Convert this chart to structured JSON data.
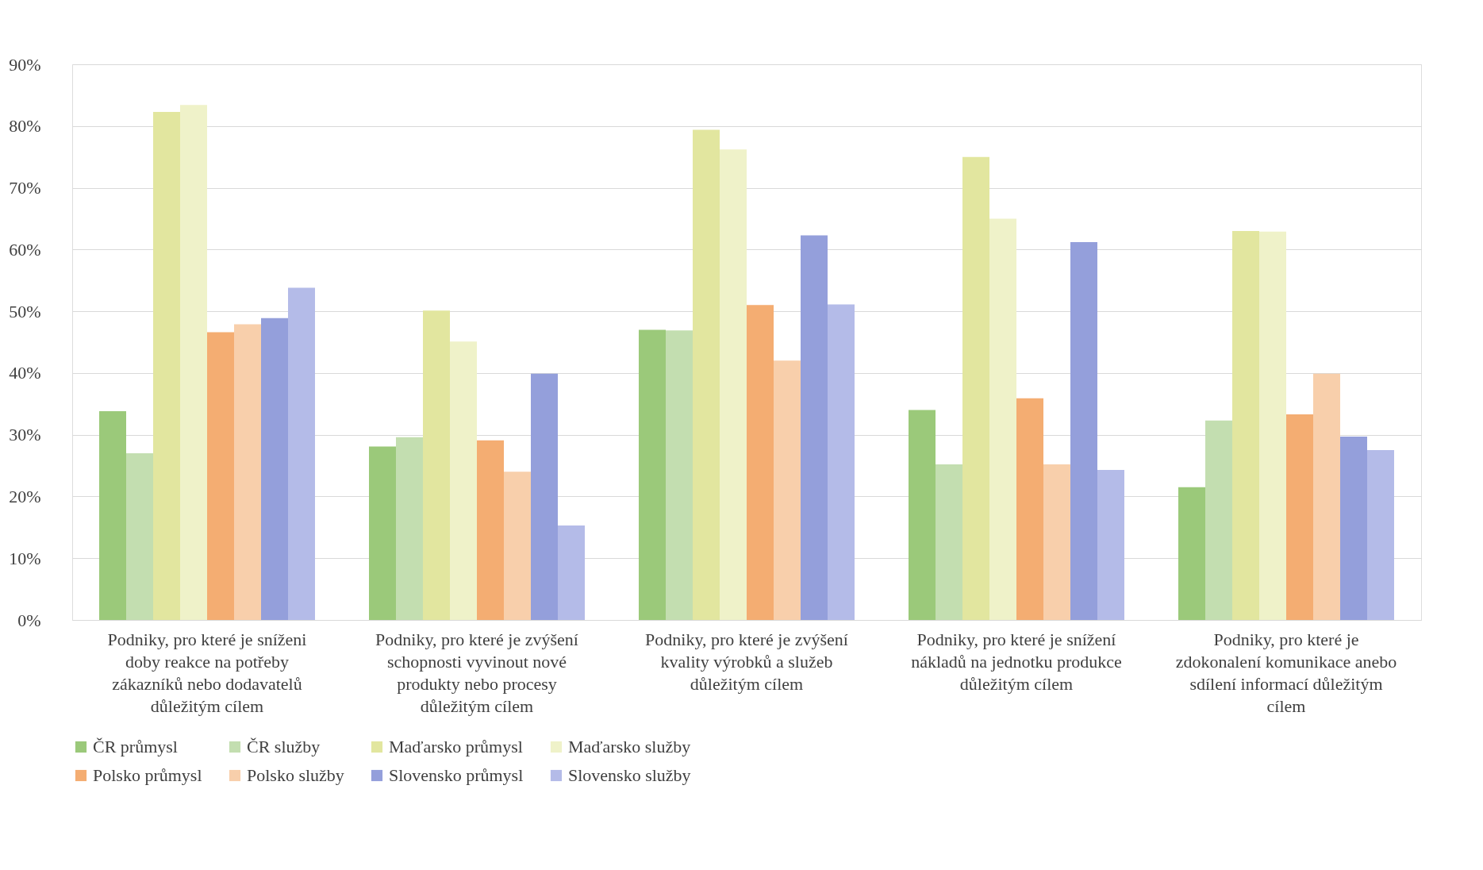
{
  "chart_data": {
    "type": "bar",
    "categories": [
      "Podniky, pro které je sníženi doby reakce na potřeby zákazníků nebo dodavatelů důležitým cílem",
      "Podniky, pro které je zvýšení schopnosti vyvinout nové produkty nebo procesy důležitým cílem",
      "Podniky, pro které je zvýšení kvality výrobků a služeb důležitým cílem",
      "Podniky, pro které je snížení nákladů na jednotku produkce důležitým cílem",
      "Podniky, pro které je zdokonalení komunikace anebo sdílení informací důležitým cílem"
    ],
    "series": [
      {
        "name": "ČR průmysl",
        "color": "#9bc97a",
        "values": [
          33.8,
          28.1,
          47.0,
          34.0,
          21.5
        ]
      },
      {
        "name": "ČR služby",
        "color": "#c3deb0",
        "values": [
          27.0,
          29.6,
          46.9,
          25.2,
          32.3
        ]
      },
      {
        "name": "Maďarsko průmysl",
        "color": "#e2e69f",
        "values": [
          82.3,
          50.1,
          79.4,
          75.0,
          63.0
        ]
      },
      {
        "name": "Maďarsko služby",
        "color": "#eff2c9",
        "values": [
          83.4,
          45.1,
          76.2,
          65.0,
          62.9
        ]
      },
      {
        "name": "Polsko průmysl",
        "color": "#f4ad72",
        "values": [
          46.6,
          29.1,
          51.0,
          35.9,
          33.3
        ]
      },
      {
        "name": "Polsko služby",
        "color": "#f8cfab",
        "values": [
          47.9,
          24.0,
          42.0,
          25.2,
          39.9
        ]
      },
      {
        "name": "Slovensko průmysl",
        "color": "#949fdb",
        "values": [
          48.9,
          39.9,
          62.3,
          61.2,
          29.7
        ]
      },
      {
        "name": "Slovensko služby",
        "color": "#b4bbe8",
        "values": [
          53.8,
          15.3,
          51.1,
          24.3,
          27.5
        ]
      }
    ],
    "ylim": [
      0,
      90
    ],
    "yticks": [
      {
        "value": 0,
        "label": "0%"
      },
      {
        "value": 10,
        "label": "10%"
      },
      {
        "value": 20,
        "label": "20%"
      },
      {
        "value": 30,
        "label": "30%"
      },
      {
        "value": 40,
        "label": "40%"
      },
      {
        "value": 50,
        "label": "50%"
      },
      {
        "value": 60,
        "label": "60%"
      },
      {
        "value": 70,
        "label": "70%"
      },
      {
        "value": 80,
        "label": "80%"
      },
      {
        "value": 90,
        "label": "90%"
      }
    ],
    "grid": "y",
    "legend": "bottom"
  }
}
